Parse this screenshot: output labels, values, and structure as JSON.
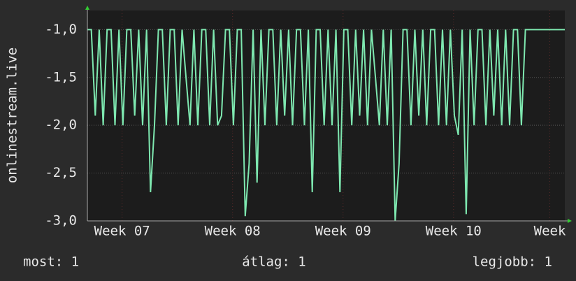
{
  "chart_data": {
    "type": "line",
    "ylabel": "onlinestream.live",
    "x": [
      0,
      0.25,
      0.5,
      0.75,
      1,
      1.25,
      1.5,
      1.75,
      2,
      2.25,
      2.5,
      2.75,
      3,
      3.25,
      3.5,
      3.75,
      4,
      4.25,
      4.5,
      4.75,
      5,
      5.25,
      5.5,
      5.75,
      6,
      6.25,
      6.5,
      6.75,
      7,
      7.25,
      7.5,
      7.75,
      8,
      8.25,
      8.5,
      8.75,
      9,
      9.25,
      9.5,
      9.75,
      10,
      10.25,
      10.5,
      10.75,
      11,
      11.25,
      11.5,
      11.75,
      12,
      12.25,
      12.5,
      12.75,
      13,
      13.25,
      13.5,
      13.75,
      14,
      14.25,
      14.5,
      14.75,
      15,
      15.25,
      15.5,
      15.75,
      16,
      16.25,
      16.5,
      16.75,
      17,
      17.25,
      17.5,
      17.75,
      18,
      18.25,
      18.5,
      18.75,
      19,
      19.25,
      19.5,
      19.75,
      20,
      20.25,
      20.5,
      20.75,
      21,
      21.25,
      21.5,
      21.75,
      22,
      22.25,
      22.5,
      22.75,
      23,
      23.25,
      23.5,
      23.75,
      24,
      24.25,
      24.5,
      24.75,
      25,
      25.25,
      25.5,
      25.75,
      26,
      26.25,
      26.5,
      26.75,
      27,
      27.25,
      27.5,
      27.75,
      28,
      28.25,
      28.5,
      28.75,
      29,
      29.25,
      29.5,
      29.75,
      30,
      30.25
    ],
    "series": [
      {
        "color": "#7ee8b0",
        "values": [
          -1,
          -1,
          -1.9,
          -1,
          -2,
          -1,
          -1,
          -2,
          -1,
          -2,
          -1,
          -1,
          -1.9,
          -1,
          -2,
          -1,
          -2.7,
          -2,
          -1,
          -1,
          -2,
          -1,
          -1,
          -2,
          -1,
          -1.5,
          -2,
          -1,
          -2,
          -1,
          -1,
          -2,
          -1,
          -2,
          -1.9,
          -1,
          -1,
          -2,
          -1,
          -1,
          -2.95,
          -2.4,
          -1,
          -2.6,
          -1,
          -2,
          -1,
          -1,
          -2,
          -1,
          -1.9,
          -1,
          -2,
          -1,
          -1,
          -2,
          -1,
          -2.7,
          -1,
          -1,
          -2,
          -1,
          -2,
          -1,
          -2.7,
          -1,
          -1,
          -2,
          -1,
          -1.9,
          -1,
          -2,
          -1,
          -1.5,
          -2,
          -1,
          -2,
          -1,
          -3,
          -2.4,
          -1,
          -1,
          -2,
          -1,
          -1.9,
          -1,
          -2,
          -1,
          -1,
          -2,
          -1,
          -2,
          -1,
          -1.9,
          -2.1,
          -1,
          -2.93,
          -1,
          -2,
          -1,
          -1,
          -2,
          -1,
          -1.9,
          -1,
          -2,
          -1,
          -2,
          -1,
          -1,
          -2,
          -1,
          -1,
          -1,
          -1,
          -1,
          -1,
          -1,
          -1,
          -1,
          -1,
          -1
        ]
      }
    ],
    "xlim": [
      0,
      30.25
    ],
    "xticks": [
      {
        "value": 2.2,
        "label": "Week 07"
      },
      {
        "value": 9.2,
        "label": "Week 08"
      },
      {
        "value": 16.2,
        "label": "Week 09"
      },
      {
        "value": 23.2,
        "label": "Week 10"
      },
      {
        "value": 29.3,
        "label": "Week"
      }
    ],
    "ylim": [
      -3,
      -0.8
    ],
    "yticks": [
      {
        "value": -3,
        "label": "-3,0"
      },
      {
        "value": -2.5,
        "label": "-2,5"
      },
      {
        "value": -2,
        "label": "-2,0"
      },
      {
        "value": -1.5,
        "label": "-1,5"
      },
      {
        "value": -1,
        "label": "-1,0"
      }
    ],
    "grid": true,
    "legend": [
      "most: 1",
      "átlag: 1",
      "legjobb: 1"
    ]
  }
}
